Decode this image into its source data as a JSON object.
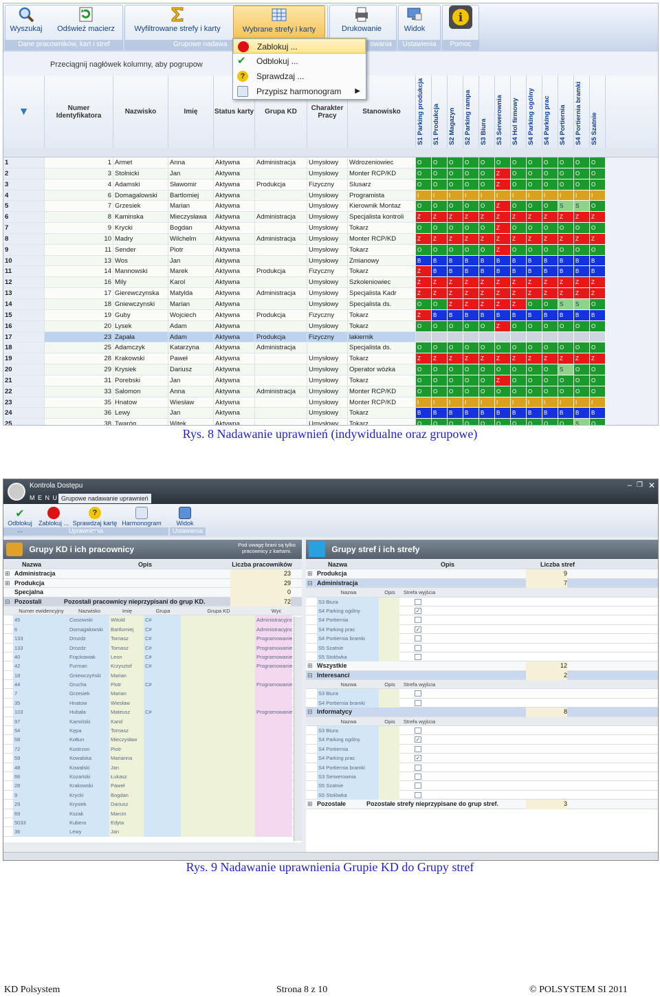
{
  "shot1": {
    "ribbon": {
      "buttons": [
        {
          "label": "Wyszukaj",
          "icon": "search-icon"
        },
        {
          "label": "Odśwież macierz",
          "icon": "refresh-icon"
        },
        {
          "label": "Wyfiltrowane strefy i karty",
          "icon": "filter-sigma-icon"
        },
        {
          "label": "Wybrane strefy i karty",
          "icon": "grid-icon"
        },
        {
          "label": "Drukowanie",
          "icon": "printer-icon"
        },
        {
          "label": "Widok",
          "icon": "monitor-icon"
        },
        {
          "label": "",
          "icon": "info-icon"
        }
      ],
      "groups": [
        {
          "caption": "Dane pracowników, kart i stref"
        },
        {
          "caption": "Grupowe nadawa"
        },
        {
          "caption": "owania"
        },
        {
          "caption": "Ustawienia"
        },
        {
          "caption": "Pomoc"
        }
      ]
    },
    "menu": [
      {
        "label": "Zablokuj ...",
        "icon": "stop-icon"
      },
      {
        "label": "Odblokuj ...",
        "icon": "check-icon"
      },
      {
        "label": "Sprawdzaj ...",
        "icon": "question-icon"
      },
      {
        "label": "Przypisz harmonogram",
        "icon": "calendar-icon"
      }
    ],
    "group_hint": "Przeciągnij nagłówek kolumny, aby pogrupow",
    "columns": [
      "Numer Identyfikatora",
      "Nazwisko",
      "Imię",
      "Status karty",
      "Grupa KD",
      "Charakter Pracy",
      "Stanowisko"
    ],
    "zones": [
      "S1 Parking produkcja",
      "S1 Produkcja",
      "S2 Magazyn",
      "S2 Parking rampa",
      "S3 Biura",
      "S3 Serwerownia",
      "S4 Hol firmowy",
      "S4 Parking ogólny",
      "S4 Parking prac",
      "S4 Portiernia",
      "S4 Portiernia bramki",
      "S5 Szatnie"
    ],
    "zone_colors": {
      "O": "#1a9a2c",
      "Z": "#e81818",
      "B": "#1532e0",
      "I": "#d9a21a",
      "S": "#8fd38a",
      "T": "#cdd6df"
    },
    "rows": [
      {
        "n": "1",
        "id": "1",
        "nazwisko": "Armet",
        "imie": "Anna",
        "status": "Aktywna",
        "grupa": "Administracja",
        "charakter": "Umysłowy",
        "stanowisko": "Wdrozeniowiec",
        "zones": "OOOOOOOOOOOO"
      },
      {
        "n": "2",
        "id": "3",
        "nazwisko": "Stolnicki",
        "imie": "Jan",
        "status": "Aktywna",
        "grupa": "",
        "charakter": "Umysłowy",
        "stanowisko": "Monter RCP/KD",
        "zones": "OOOOOZOOOOOO"
      },
      {
        "n": "3",
        "id": "4",
        "nazwisko": "Adamski",
        "imie": "Sławomir",
        "status": "Aktywna",
        "grupa": "Produkcja",
        "charakter": "Fizyczny",
        "stanowisko": "Slusarz",
        "zones": "OOOOOZOOOOOO"
      },
      {
        "n": "4",
        "id": "6",
        "nazwisko": "Domagalowski",
        "imie": "Bartlomiej",
        "status": "Aktywna",
        "grupa": "",
        "charakter": "Umysłowy",
        "stanowisko": "Programista",
        "zones": "IIIIIIIIIIII"
      },
      {
        "n": "5",
        "id": "7",
        "nazwisko": "Grzesiek",
        "imie": "Marian",
        "status": "Aktywna",
        "grupa": "",
        "charakter": "Umysłowy",
        "stanowisko": "Kierownik Montaz",
        "zones": "OOOOOZOOOSSO"
      },
      {
        "n": "6",
        "id": "8",
        "nazwisko": "Kaminska",
        "imie": "Mieczysława",
        "status": "Aktywna",
        "grupa": "Administracja",
        "charakter": "Umysłowy",
        "stanowisko": "Specjalista kontroli",
        "zones": "ZZZZZZZZZZZZ"
      },
      {
        "n": "7",
        "id": "9",
        "nazwisko": "Krycki",
        "imie": "Bogdan",
        "status": "Aktywna",
        "grupa": "",
        "charakter": "Umysłowy",
        "stanowisko": "Tokarz",
        "zones": "OOOOOZOOOOOO"
      },
      {
        "n": "8",
        "id": "10",
        "nazwisko": "Madry",
        "imie": "Wilchelm",
        "status": "Aktywna",
        "grupa": "Administracja",
        "charakter": "Umysłowy",
        "stanowisko": "Monter RCP/KD",
        "zones": "ZZZZZZZZZZZZ"
      },
      {
        "n": "9",
        "id": "11",
        "nazwisko": "Sender",
        "imie": "Piotr",
        "status": "Aktywna",
        "grupa": "",
        "charakter": "Umysłowy",
        "stanowisko": "Tokarz",
        "zones": "OOOOOZOOOOOO"
      },
      {
        "n": "10",
        "id": "13",
        "nazwisko": "Wos",
        "imie": "Jan",
        "status": "Aktywna",
        "grupa": "",
        "charakter": "Umysłowy",
        "stanowisko": "Zmianowy",
        "zones": "BBBBBBBBBBBB"
      },
      {
        "n": "11",
        "id": "14",
        "nazwisko": "Mannowski",
        "imie": "Marek",
        "status": "Aktywna",
        "grupa": "Produkcja",
        "charakter": "Fizyczny",
        "stanowisko": "Tokarz",
        "zones": "ZBBBBBBBBBBB"
      },
      {
        "n": "12",
        "id": "16",
        "nazwisko": "Mily",
        "imie": "Karol",
        "status": "Aktywna",
        "grupa": "",
        "charakter": "Umysłowy",
        "stanowisko": "Szkoleniowiec",
        "zones": "ZZZZZZZZZZZZ"
      },
      {
        "n": "13",
        "id": "17",
        "nazwisko": "Gierewczynska",
        "imie": "Matylda",
        "status": "Aktywna",
        "grupa": "Administracja",
        "charakter": "Umysłowy",
        "stanowisko": "Specjalista Kadr",
        "zones": "ZZZZZZZZZZZZ"
      },
      {
        "n": "14",
        "id": "18",
        "nazwisko": "Gniewczynski",
        "imie": "Marian",
        "status": "Aktywna",
        "grupa": "",
        "charakter": "Umysłowy",
        "stanowisko": "Specjalista ds.",
        "zones": "OOZZZZZOOSSO"
      },
      {
        "n": "15",
        "id": "19",
        "nazwisko": "Guby",
        "imie": "Wojciech",
        "status": "Aktywna",
        "grupa": "Produkcja",
        "charakter": "Fizyczny",
        "stanowisko": "Tokarz",
        "zones": "ZBBBBBBBBBBB"
      },
      {
        "n": "16",
        "id": "20",
        "nazwisko": "Lysek",
        "imie": "Adam",
        "status": "Aktywna",
        "grupa": "",
        "charakter": "Umysłowy",
        "stanowisko": "Tokarz",
        "zones": "OOOOOZOOOOOO"
      },
      {
        "n": "17",
        "id": "23",
        "nazwisko": "Zapała",
        "imie": "Adam",
        "status": "Aktywna",
        "grupa": "Produkcja",
        "charakter": "Fizyczny",
        "stanowisko": "lakiernik",
        "zones": "TTTTTTTTTTTT"
      },
      {
        "n": "18",
        "id": "25",
        "nazwisko": "Adamczyk",
        "imie": "Katarzyna",
        "status": "Aktywna",
        "grupa": "Administracja",
        "charakter": "",
        "stanowisko": "Specjalista ds.",
        "zones": "OOOOOOOOOOOO"
      },
      {
        "n": "19",
        "id": "28",
        "nazwisko": "Krakowski",
        "imie": "Paweł",
        "status": "Aktywna",
        "grupa": "",
        "charakter": "Umysłowy",
        "stanowisko": "Tokarz",
        "zones": "ZZZZZZZZZZZZ"
      },
      {
        "n": "20",
        "id": "29",
        "nazwisko": "Krysiek",
        "imie": "Dariusz",
        "status": "Aktywna",
        "grupa": "",
        "charakter": "Umysłowy",
        "stanowisko": "Operator wózka",
        "zones": "OOOOOOOOOSOO"
      },
      {
        "n": "21",
        "id": "31",
        "nazwisko": "Porebski",
        "imie": "Jan",
        "status": "Aktywna",
        "grupa": "",
        "charakter": "Umysłowy",
        "stanowisko": "Tokarz",
        "zones": "OOOOOZOOOOOO"
      },
      {
        "n": "22",
        "id": "33",
        "nazwisko": "Salomon",
        "imie": "Anna",
        "status": "Aktywna",
        "grupa": "Administracja",
        "charakter": "Umysłowy",
        "stanowisko": "Monter RCP/KD",
        "zones": "OOOOOOOOOOOO"
      },
      {
        "n": "23",
        "id": "35",
        "nazwisko": "Hnatow",
        "imie": "Wiesław",
        "status": "Aktywna",
        "grupa": "",
        "charakter": "Umysłowy",
        "stanowisko": "Monter RCP/KD",
        "zones": "IIIIIIIIIIII"
      },
      {
        "n": "24",
        "id": "36",
        "nazwisko": "Lewy",
        "imie": "Jan",
        "status": "Aktywna",
        "grupa": "",
        "charakter": "Umysłowy",
        "stanowisko": "Tokarz",
        "zones": "BBBBBBBBBBBB"
      },
      {
        "n": "25",
        "id": "38",
        "nazwisko": "Twaróg",
        "imie": "Witek",
        "status": "Aktywna",
        "grupa": "",
        "charakter": "Umysłowy",
        "stanowisko": "Tokarz",
        "zones": "OOOOOOOOOOSO"
      }
    ]
  },
  "caption1": "Rys. 8 Nadawanie uprawnień (indywidualne oraz grupowe)",
  "shot2": {
    "window_title": "Kontrola Dostępu",
    "menu_label": "M E N U",
    "tab_label": "Grupowe nadawanie uprawnień",
    "ribbon": {
      "buttons": [
        {
          "label": "Odblokuj ...",
          "icon": "check-icon"
        },
        {
          "label": "Zablokuj ...",
          "icon": "stop-icon"
        },
        {
          "label": "Sprawdzaj kartę ...",
          "icon": "question-icon"
        },
        {
          "label": "Harmonogram",
          "icon": "calendar-icon"
        },
        {
          "label": "Widok",
          "icon": "monitor-icon"
        }
      ],
      "group_caption_left": "Uprawnienia",
      "group_caption_right": "Ustawienia"
    },
    "left_panel": {
      "title": "Grupy KD i ich pracownicy",
      "note": "Pod uwagę brani są tylko pracownicy z kartami.",
      "headers": [
        "Nazwa",
        "Opis",
        "Liczba pracowników"
      ],
      "groups": [
        {
          "name": "Administracja",
          "opis": "",
          "count": "23"
        },
        {
          "name": "Produkcja",
          "opis": "",
          "count": "29"
        },
        {
          "name": "Specjalna",
          "opis": "",
          "count": "0"
        },
        {
          "name": "Pozostali",
          "opis": "Pozostali pracownicy nieprzypisani do grup KD.",
          "count": "72"
        }
      ],
      "sub_headers": [
        "Numer ewidencyjny",
        "Nazwisko",
        "Imię",
        "Grupa",
        "Grupa KD",
        "Wyc"
      ],
      "employees": [
        {
          "num": "45",
          "nazwisko": "Ciosowski",
          "imie": "Witold",
          "grupa": "C#",
          "kd": "Administracyjno-f"
        },
        {
          "num": "6",
          "nazwisko": "Domagalowski",
          "imie": "Bartlomiej",
          "grupa": "C#",
          "kd": "Administracyjno-f"
        },
        {
          "num": "133",
          "nazwisko": "Drozdz",
          "imie": "Tomasz",
          "grupa": "C#",
          "kd": "Programowanie"
        },
        {
          "num": "133",
          "nazwisko": "Drozdz",
          "imie": "Tomasz",
          "grupa": "C#",
          "kd": "Programowanie"
        },
        {
          "num": "40",
          "nazwisko": "Frąckowiak",
          "imie": "Leon",
          "grupa": "C#",
          "kd": "Programowanie"
        },
        {
          "num": "42",
          "nazwisko": "Furman",
          "imie": "Krzysztof",
          "grupa": "C#",
          "kd": "Programowanie"
        },
        {
          "num": "18",
          "nazwisko": "Gniewczyński",
          "imie": "Marian",
          "grupa": "",
          "kd": ""
        },
        {
          "num": "44",
          "nazwisko": "Grucha",
          "imie": "Piotr",
          "grupa": "C#",
          "kd": "Programowanie"
        },
        {
          "num": "7",
          "nazwisko": "Grzesiek",
          "imie": "Marian",
          "grupa": "",
          "kd": ""
        },
        {
          "num": "35",
          "nazwisko": "Hnatow",
          "imie": "Wiesław",
          "grupa": "",
          "kd": ""
        },
        {
          "num": "103",
          "nazwisko": "Hubała",
          "imie": "Mateusz",
          "grupa": "C#",
          "kd": "Programowanie"
        },
        {
          "num": "97",
          "nazwisko": "Kamiński",
          "imie": "Karol",
          "grupa": "",
          "kd": ""
        },
        {
          "num": "54",
          "nazwisko": "Kępa",
          "imie": "Tomasz",
          "grupa": "",
          "kd": ""
        },
        {
          "num": "58",
          "nazwisko": "Kołtun",
          "imie": "Mieczysław",
          "grupa": "",
          "kd": ""
        },
        {
          "num": "72",
          "nazwisko": "Kostrzon",
          "imie": "Piotr",
          "grupa": "",
          "kd": ""
        },
        {
          "num": "59",
          "nazwisko": "Kowalska",
          "imie": "Marianna",
          "grupa": "",
          "kd": ""
        },
        {
          "num": "48",
          "nazwisko": "Kowalski",
          "imie": "Jan",
          "grupa": "",
          "kd": ""
        },
        {
          "num": "66",
          "nazwisko": "Kozański",
          "imie": "Łukasz",
          "grupa": "",
          "kd": ""
        },
        {
          "num": "28",
          "nazwisko": "Krakowski",
          "imie": "Paweł",
          "grupa": "",
          "kd": ""
        },
        {
          "num": "9",
          "nazwisko": "Krycki",
          "imie": "Bogdan",
          "grupa": "",
          "kd": ""
        },
        {
          "num": "29",
          "nazwisko": "Krysiek",
          "imie": "Dariusz",
          "grupa": "",
          "kd": ""
        },
        {
          "num": "69",
          "nazwisko": "Kszak",
          "imie": "Marcin",
          "grupa": "",
          "kd": ""
        },
        {
          "num": "5033",
          "nazwisko": "Kubera",
          "imie": "Edyta",
          "grupa": "",
          "kd": ""
        },
        {
          "num": "36",
          "nazwisko": "Lewy",
          "imie": "Jan",
          "grupa": "",
          "kd": ""
        }
      ]
    },
    "right_panel": {
      "title": "Grupy stref i ich strefy",
      "headers": [
        "Nazwa",
        "Opis",
        "Liczba stref"
      ],
      "zone_headers": [
        "Nazwa",
        "Opis",
        "Strefa wyjścia"
      ],
      "groups": [
        {
          "name": "Produkcja",
          "opis": "",
          "count": "9",
          "zones": []
        },
        {
          "name": "Administracja",
          "opis": "",
          "count": "7",
          "zones": [
            {
              "name": "S3 Biura",
              "exit": false
            },
            {
              "name": "S4 Parking ogólny",
              "exit": true
            },
            {
              "name": "S4 Portiernia",
              "exit": false
            },
            {
              "name": "S4 Parking prac",
              "exit": true
            },
            {
              "name": "S4 Portiernia bramki",
              "exit": false
            },
            {
              "name": "S5 Szatnie",
              "exit": false
            },
            {
              "name": "S5 Stolówka",
              "exit": false
            }
          ]
        },
        {
          "name": "Wszystkie",
          "opis": "",
          "count": "12",
          "zones": []
        },
        {
          "name": "Interesanci",
          "opis": "",
          "count": "2",
          "zones": [
            {
              "name": "S3 Biura",
              "exit": false
            },
            {
              "name": "S4 Portiernia bramki",
              "exit": false
            }
          ]
        },
        {
          "name": "Informatycy",
          "opis": "",
          "count": "8",
          "zones": [
            {
              "name": "S3 Biura",
              "exit": false
            },
            {
              "name": "S4 Parking ogólny",
              "exit": true
            },
            {
              "name": "S4 Portiernia",
              "exit": false
            },
            {
              "name": "S4 Parking prac",
              "exit": true
            },
            {
              "name": "S4 Portiernia bramki",
              "exit": false
            },
            {
              "name": "S3 Serwerownia",
              "exit": false
            },
            {
              "name": "S5 Szatnie",
              "exit": false
            },
            {
              "name": "S5 Stolówka",
              "exit": false
            }
          ]
        },
        {
          "name": "Pozostałe",
          "opis": "Pozostałe strefy nieprzypisane do grup stref.",
          "count": "3",
          "zones": []
        }
      ]
    }
  },
  "caption2": "Rys. 9 Nadawanie uprawnienia Grupie KD do Grupy stref",
  "footer": {
    "left": "KD Polsystem",
    "center": "Strona 8 z 10",
    "right": "© POLSYSTEM SI 2011"
  }
}
